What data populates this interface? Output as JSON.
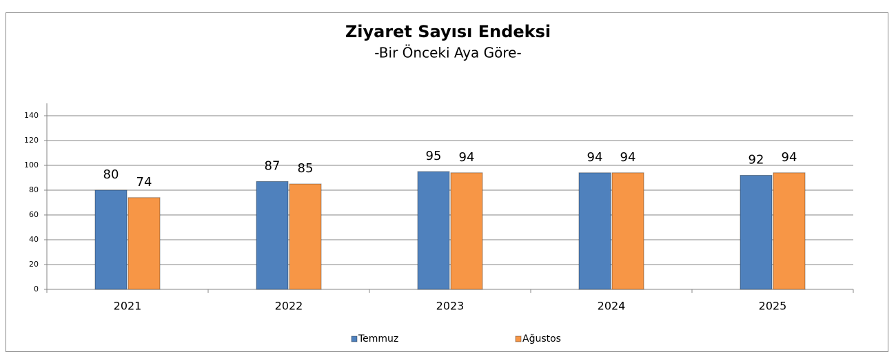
{
  "chart_data": {
    "type": "bar",
    "title": "Ziyaret Sayısı Endeksi",
    "subtitle": "-Bir Önceki Aya Göre-",
    "categories": [
      "2021",
      "2022",
      "2023",
      "2024",
      "2025"
    ],
    "series": [
      {
        "name": "Temmuz",
        "color": "#4f81bd",
        "values": [
          80,
          87,
          95,
          94,
          92
        ]
      },
      {
        "name": "Ağustos",
        "color": "#f79646",
        "values": [
          74,
          85,
          94,
          94,
          94
        ]
      }
    ],
    "ylim": [
      0,
      150
    ],
    "yticks": [
      0,
      20,
      40,
      60,
      80,
      100,
      120,
      140
    ],
    "grid": true,
    "legend": "bottom"
  }
}
